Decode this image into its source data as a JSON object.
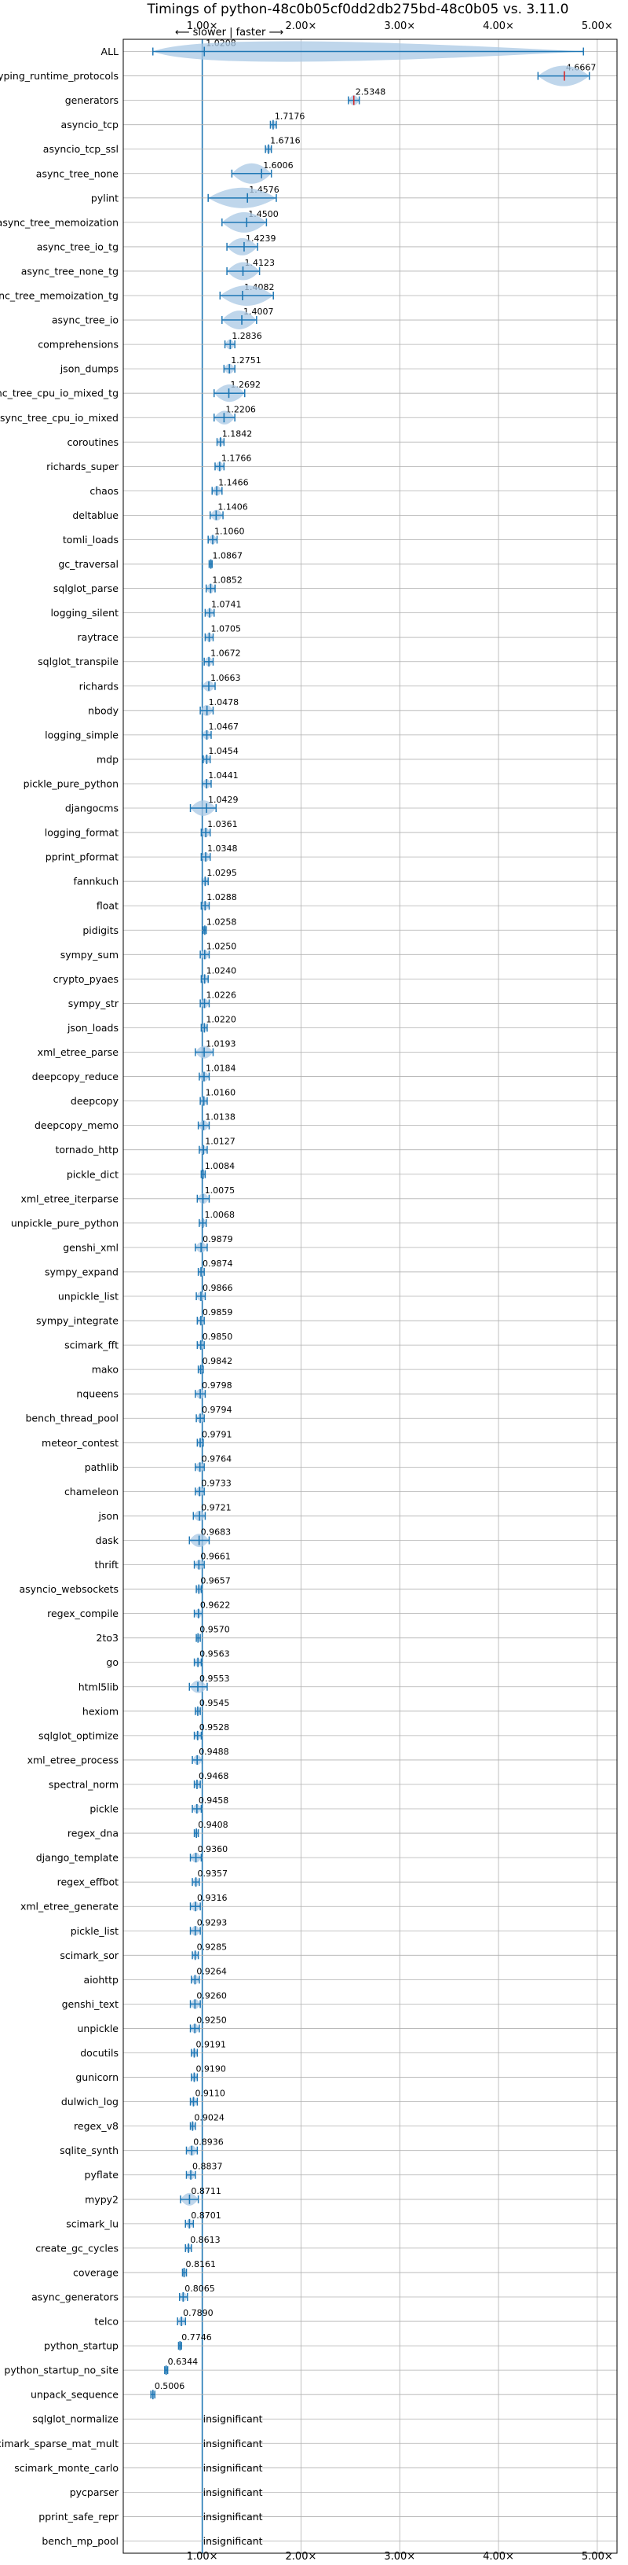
{
  "chart_data": {
    "type": "violin",
    "title": "Timings of python-48c0b05cf0dd2db275bd-48c0b05 vs. 3.11.0",
    "subtitle": "⟵ slower | faster ⟶",
    "x_ticks": [
      {
        "value": 1.0,
        "label": "1.00×"
      },
      {
        "value": 2.0,
        "label": "2.00×"
      },
      {
        "value": 3.0,
        "label": "3.00×"
      },
      {
        "value": 4.0,
        "label": "4.00×"
      },
      {
        "value": 5.0,
        "label": "5.00×"
      }
    ],
    "xlim": [
      0.2,
      5.2
    ],
    "reference_value": 1.0,
    "grid": true,
    "insignificant_label": "insignificant",
    "benchmarks": [
      {
        "name": "ALL",
        "value": 1.0208,
        "low": 0.5,
        "high": 4.86
      },
      {
        "name": "typing_runtime_protocols",
        "value": 4.6667,
        "low": 4.4,
        "high": 4.92
      },
      {
        "name": "generators",
        "value": 2.5348,
        "low": 2.48,
        "high": 2.59
      },
      {
        "name": "asyncio_tcp",
        "value": 1.7176,
        "low": 1.69,
        "high": 1.75
      },
      {
        "name": "asyncio_tcp_ssl",
        "value": 1.6716,
        "low": 1.64,
        "high": 1.7
      },
      {
        "name": "async_tree_none",
        "value": 1.6006,
        "low": 1.3,
        "high": 1.7
      },
      {
        "name": "pylint",
        "value": 1.4576,
        "low": 1.06,
        "high": 1.75
      },
      {
        "name": "async_tree_memoization",
        "value": 1.45,
        "low": 1.2,
        "high": 1.65
      },
      {
        "name": "async_tree_io_tg",
        "value": 1.4239,
        "low": 1.25,
        "high": 1.56
      },
      {
        "name": "async_tree_none_tg",
        "value": 1.4123,
        "low": 1.25,
        "high": 1.58
      },
      {
        "name": "async_tree_memoization_tg",
        "value": 1.4082,
        "low": 1.18,
        "high": 1.72
      },
      {
        "name": "async_tree_io",
        "value": 1.4007,
        "low": 1.2,
        "high": 1.55
      },
      {
        "name": "comprehensions",
        "value": 1.2836,
        "low": 1.23,
        "high": 1.33
      },
      {
        "name": "json_dumps",
        "value": 1.2751,
        "low": 1.22,
        "high": 1.33
      },
      {
        "name": "async_tree_cpu_io_mixed_tg",
        "value": 1.2692,
        "low": 1.12,
        "high": 1.43
      },
      {
        "name": "async_tree_cpu_io_mixed",
        "value": 1.2206,
        "low": 1.12,
        "high": 1.33
      },
      {
        "name": "coroutines",
        "value": 1.1842,
        "low": 1.15,
        "high": 1.22
      },
      {
        "name": "richards_super",
        "value": 1.1766,
        "low": 1.13,
        "high": 1.22
      },
      {
        "name": "chaos",
        "value": 1.1466,
        "low": 1.1,
        "high": 1.2
      },
      {
        "name": "deltablue",
        "value": 1.1406,
        "low": 1.08,
        "high": 1.21
      },
      {
        "name": "tomli_loads",
        "value": 1.106,
        "low": 1.06,
        "high": 1.15
      },
      {
        "name": "gc_traversal",
        "value": 1.0867,
        "low": 1.07,
        "high": 1.1
      },
      {
        "name": "sqlglot_parse",
        "value": 1.0852,
        "low": 1.04,
        "high": 1.13
      },
      {
        "name": "logging_silent",
        "value": 1.0741,
        "low": 1.03,
        "high": 1.12
      },
      {
        "name": "raytrace",
        "value": 1.0705,
        "low": 1.03,
        "high": 1.11
      },
      {
        "name": "sqlglot_transpile",
        "value": 1.0672,
        "low": 1.02,
        "high": 1.11
      },
      {
        "name": "richards",
        "value": 1.0663,
        "low": 1.0,
        "high": 1.13
      },
      {
        "name": "nbody",
        "value": 1.0478,
        "low": 0.98,
        "high": 1.11
      },
      {
        "name": "logging_simple",
        "value": 1.0467,
        "low": 1.0,
        "high": 1.09
      },
      {
        "name": "mdp",
        "value": 1.0454,
        "low": 1.01,
        "high": 1.08
      },
      {
        "name": "pickle_pure_python",
        "value": 1.0441,
        "low": 1.0,
        "high": 1.09
      },
      {
        "name": "djangocms",
        "value": 1.0429,
        "low": 0.88,
        "high": 1.14
      },
      {
        "name": "logging_format",
        "value": 1.0361,
        "low": 0.99,
        "high": 1.08
      },
      {
        "name": "pprint_pformat",
        "value": 1.0348,
        "low": 0.99,
        "high": 1.08
      },
      {
        "name": "fannkuch",
        "value": 1.0295,
        "low": 1.0,
        "high": 1.06
      },
      {
        "name": "float",
        "value": 1.0288,
        "low": 0.99,
        "high": 1.07
      },
      {
        "name": "pidigits",
        "value": 1.0258,
        "low": 1.01,
        "high": 1.04
      },
      {
        "name": "sympy_sum",
        "value": 1.025,
        "low": 0.98,
        "high": 1.07
      },
      {
        "name": "crypto_pyaes",
        "value": 1.024,
        "low": 0.99,
        "high": 1.06
      },
      {
        "name": "sympy_str",
        "value": 1.0226,
        "low": 0.98,
        "high": 1.07
      },
      {
        "name": "json_loads",
        "value": 1.022,
        "low": 0.99,
        "high": 1.05
      },
      {
        "name": "xml_etree_parse",
        "value": 1.0193,
        "low": 0.93,
        "high": 1.11
      },
      {
        "name": "deepcopy_reduce",
        "value": 1.0184,
        "low": 0.97,
        "high": 1.07
      },
      {
        "name": "deepcopy",
        "value": 1.016,
        "low": 0.98,
        "high": 1.05
      },
      {
        "name": "deepcopy_memo",
        "value": 1.0138,
        "low": 0.96,
        "high": 1.07
      },
      {
        "name": "tornado_http",
        "value": 1.0127,
        "low": 0.97,
        "high": 1.05
      },
      {
        "name": "pickle_dict",
        "value": 1.0084,
        "low": 0.99,
        "high": 1.03
      },
      {
        "name": "xml_etree_iterparse",
        "value": 1.0075,
        "low": 0.95,
        "high": 1.07
      },
      {
        "name": "unpickle_pure_python",
        "value": 1.0068,
        "low": 0.97,
        "high": 1.04
      },
      {
        "name": "genshi_xml",
        "value": 0.9879,
        "low": 0.93,
        "high": 1.05
      },
      {
        "name": "sympy_expand",
        "value": 0.9874,
        "low": 0.96,
        "high": 1.02
      },
      {
        "name": "unpickle_list",
        "value": 0.9866,
        "low": 0.94,
        "high": 1.03
      },
      {
        "name": "sympy_integrate",
        "value": 0.9859,
        "low": 0.95,
        "high": 1.02
      },
      {
        "name": "scimark_fft",
        "value": 0.985,
        "low": 0.95,
        "high": 1.02
      },
      {
        "name": "mako",
        "value": 0.9842,
        "low": 0.96,
        "high": 1.01
      },
      {
        "name": "nqueens",
        "value": 0.9798,
        "low": 0.93,
        "high": 1.03
      },
      {
        "name": "bench_thread_pool",
        "value": 0.9794,
        "low": 0.94,
        "high": 1.02
      },
      {
        "name": "meteor_contest",
        "value": 0.9791,
        "low": 0.95,
        "high": 1.01
      },
      {
        "name": "pathlib",
        "value": 0.9764,
        "low": 0.93,
        "high": 1.02
      },
      {
        "name": "chameleon",
        "value": 0.9733,
        "low": 0.93,
        "high": 1.02
      },
      {
        "name": "json",
        "value": 0.9721,
        "low": 0.91,
        "high": 1.03
      },
      {
        "name": "dask",
        "value": 0.9683,
        "low": 0.87,
        "high": 1.07
      },
      {
        "name": "thrift",
        "value": 0.9661,
        "low": 0.92,
        "high": 1.02
      },
      {
        "name": "asyncio_websockets",
        "value": 0.9657,
        "low": 0.94,
        "high": 0.99
      },
      {
        "name": "regex_compile",
        "value": 0.9622,
        "low": 0.92,
        "high": 1.0
      },
      {
        "name": "2to3",
        "value": 0.957,
        "low": 0.94,
        "high": 0.98
      },
      {
        "name": "go",
        "value": 0.9563,
        "low": 0.92,
        "high": 0.99
      },
      {
        "name": "html5lib",
        "value": 0.9553,
        "low": 0.87,
        "high": 1.05
      },
      {
        "name": "hexiom",
        "value": 0.9545,
        "low": 0.93,
        "high": 0.98
      },
      {
        "name": "sqlglot_optimize",
        "value": 0.9528,
        "low": 0.92,
        "high": 0.99
      },
      {
        "name": "xml_etree_process",
        "value": 0.9488,
        "low": 0.9,
        "high": 1.0
      },
      {
        "name": "spectral_norm",
        "value": 0.9468,
        "low": 0.92,
        "high": 0.98
      },
      {
        "name": "pickle",
        "value": 0.9458,
        "low": 0.9,
        "high": 0.99
      },
      {
        "name": "regex_dna",
        "value": 0.9408,
        "low": 0.92,
        "high": 0.96
      },
      {
        "name": "django_template",
        "value": 0.936,
        "low": 0.88,
        "high": 0.99
      },
      {
        "name": "regex_effbot",
        "value": 0.9357,
        "low": 0.9,
        "high": 0.97
      },
      {
        "name": "xml_etree_generate",
        "value": 0.9316,
        "low": 0.88,
        "high": 0.98
      },
      {
        "name": "pickle_list",
        "value": 0.9293,
        "low": 0.88,
        "high": 0.98
      },
      {
        "name": "scimark_sor",
        "value": 0.9285,
        "low": 0.9,
        "high": 0.96
      },
      {
        "name": "aiohttp",
        "value": 0.9264,
        "low": 0.89,
        "high": 0.97
      },
      {
        "name": "genshi_text",
        "value": 0.926,
        "low": 0.88,
        "high": 0.98
      },
      {
        "name": "unpickle",
        "value": 0.925,
        "low": 0.88,
        "high": 0.97
      },
      {
        "name": "docutils",
        "value": 0.9191,
        "low": 0.89,
        "high": 0.95
      },
      {
        "name": "gunicorn",
        "value": 0.919,
        "low": 0.89,
        "high": 0.95
      },
      {
        "name": "dulwich_log",
        "value": 0.911,
        "low": 0.88,
        "high": 0.95
      },
      {
        "name": "regex_v8",
        "value": 0.9024,
        "low": 0.88,
        "high": 0.93
      },
      {
        "name": "sqlite_synth",
        "value": 0.8936,
        "low": 0.84,
        "high": 0.95
      },
      {
        "name": "pyflate",
        "value": 0.8837,
        "low": 0.84,
        "high": 0.93
      },
      {
        "name": "mypy2",
        "value": 0.8711,
        "low": 0.78,
        "high": 0.96
      },
      {
        "name": "scimark_lu",
        "value": 0.8701,
        "low": 0.83,
        "high": 0.91
      },
      {
        "name": "create_gc_cycles",
        "value": 0.8613,
        "low": 0.83,
        "high": 0.89
      },
      {
        "name": "coverage",
        "value": 0.8161,
        "low": 0.8,
        "high": 0.84
      },
      {
        "name": "async_generators",
        "value": 0.8065,
        "low": 0.77,
        "high": 0.85
      },
      {
        "name": "telco",
        "value": 0.789,
        "low": 0.75,
        "high": 0.83
      },
      {
        "name": "python_startup",
        "value": 0.7746,
        "low": 0.76,
        "high": 0.79
      },
      {
        "name": "python_startup_no_site",
        "value": 0.6344,
        "low": 0.62,
        "high": 0.65
      },
      {
        "name": "unpack_sequence",
        "value": 0.5006,
        "low": 0.48,
        "high": 0.52
      },
      {
        "name": "sqlglot_normalize",
        "insignificant": true
      },
      {
        "name": "scimark_sparse_mat_mult",
        "insignificant": true
      },
      {
        "name": "scimark_monte_carlo",
        "insignificant": true
      },
      {
        "name": "pycparser",
        "insignificant": true
      },
      {
        "name": "pprint_safe_repr",
        "insignificant": true
      },
      {
        "name": "bench_mp_pool",
        "insignificant": true
      }
    ],
    "colors": {
      "line": "#1f77b4",
      "fill": "#aac8e4",
      "regression": "#d62728",
      "grid": "#b0b0b0",
      "text": "#000000"
    }
  }
}
